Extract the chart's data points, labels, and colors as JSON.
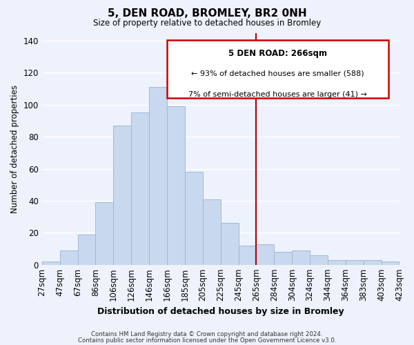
{
  "title": "5, DEN ROAD, BROMLEY, BR2 0NH",
  "subtitle": "Size of property relative to detached houses in Bromley",
  "xlabel": "Distribution of detached houses by size in Bromley",
  "ylabel": "Number of detached properties",
  "bar_color": "#c8d8ee",
  "bar_edge_color": "#a0b8d8",
  "categories": [
    "27sqm",
    "47sqm",
    "67sqm",
    "86sqm",
    "106sqm",
    "126sqm",
    "146sqm",
    "166sqm",
    "185sqm",
    "205sqm",
    "225sqm",
    "245sqm",
    "265sqm",
    "284sqm",
    "304sqm",
    "324sqm",
    "344sqm",
    "364sqm",
    "383sqm",
    "403sqm",
    "423sqm"
  ],
  "values": [
    2,
    9,
    19,
    39,
    87,
    95,
    111,
    99,
    58,
    41,
    26,
    12,
    13,
    8,
    9,
    6,
    3,
    3,
    3,
    2
  ],
  "marker_x_category": "265sqm",
  "marker_color": "#aa0000",
  "annotation_title": "5 DEN ROAD: 266sqm",
  "annotation_line1": "← 93% of detached houses are smaller (588)",
  "annotation_line2": "7% of semi-detached houses are larger (41) →",
  "annotation_box_color": "#ffffff",
  "annotation_box_edge_color": "#cc0000",
  "ylim": [
    0,
    145
  ],
  "yticks": [
    0,
    20,
    40,
    60,
    80,
    100,
    120,
    140
  ],
  "footnote1": "Contains HM Land Registry data © Crown copyright and database right 2024.",
  "footnote2": "Contains public sector information licensed under the Open Government Licence v3.0.",
  "background_color": "#eef2fc",
  "grid_color": "#ffffff"
}
